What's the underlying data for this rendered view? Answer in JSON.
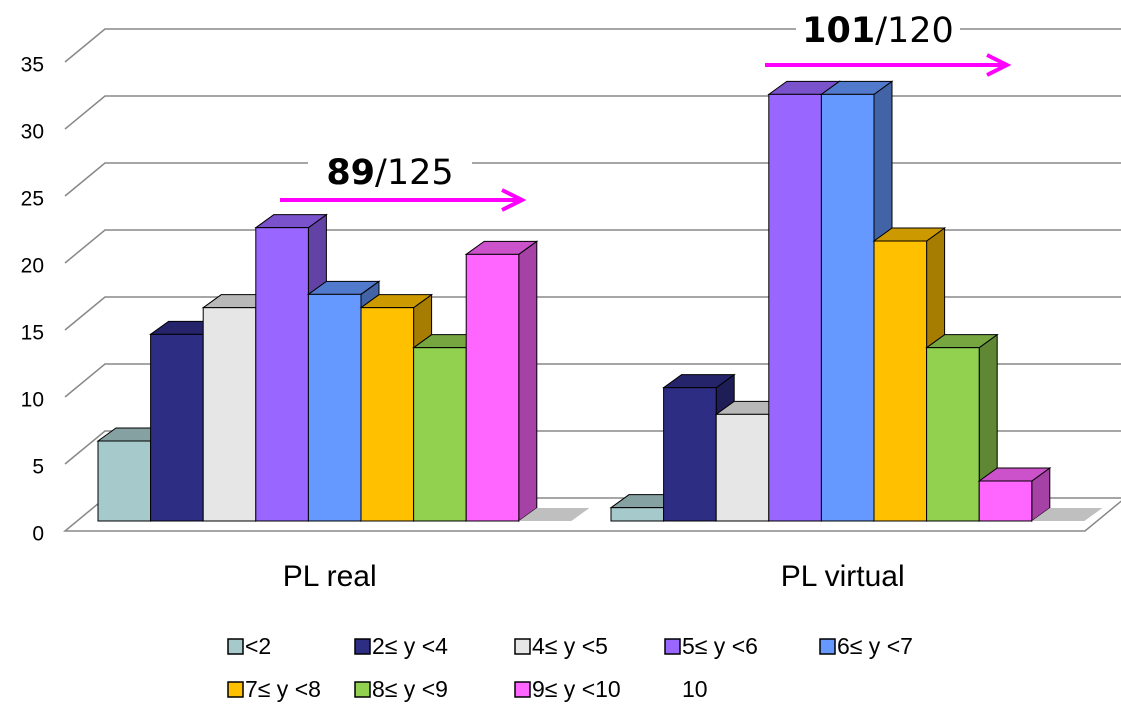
{
  "chart_data": {
    "type": "bar3d",
    "categories": [
      "PL real",
      "PL virtual"
    ],
    "series": [
      {
        "name": "<2",
        "color": "#a6c9cb",
        "values": [
          6,
          1
        ]
      },
      {
        "name": "2≤ y <4",
        "color": "#2e2d84",
        "values": [
          14,
          10
        ]
      },
      {
        "name": "4≤ y <5",
        "color": "#e6e6e6",
        "values": [
          16,
          8
        ]
      },
      {
        "name": "5≤ y <6",
        "color": "#9966ff",
        "values": [
          22,
          32
        ]
      },
      {
        "name": "6≤ y <7",
        "color": "#6699ff",
        "values": [
          17,
          32
        ]
      },
      {
        "name": "7≤ y <8",
        "color": "#ffc000",
        "values": [
          16,
          21
        ]
      },
      {
        "name": "8≤ y <9",
        "color": "#92d050",
        "values": [
          13,
          13
        ]
      },
      {
        "name": "9≤ y <10",
        "color": "#ff66ff",
        "values": [
          20,
          3
        ]
      },
      {
        "name": "10",
        "color": "#ffffff",
        "values": [
          0,
          0
        ]
      }
    ],
    "ylim": [
      0,
      35
    ],
    "yticks": [
      0,
      5,
      10,
      15,
      20,
      25,
      30,
      35
    ],
    "grid": true,
    "annotations": [
      {
        "bold": "89",
        "text": "/125",
        "color": "#ff00ff"
      },
      {
        "bold": "101",
        "text": "/120",
        "color": "#ff00ff"
      }
    ]
  }
}
